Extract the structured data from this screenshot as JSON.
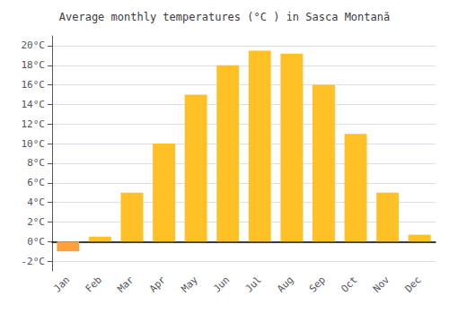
{
  "chart_data": {
    "type": "bar",
    "title": "Average monthly temperatures (°C ) in Sasca Montană",
    "categories": [
      "Jan",
      "Feb",
      "Mar",
      "Apr",
      "May",
      "Jun",
      "Jul",
      "Aug",
      "Sep",
      "Oct",
      "Nov",
      "Dec"
    ],
    "values": [
      -1.0,
      0.5,
      5.0,
      10.0,
      15.0,
      18.0,
      19.5,
      19.2,
      16.0,
      11.0,
      5.0,
      0.7
    ],
    "colors": [
      "#FFA040",
      "#FFC125",
      "#FFC125",
      "#FFC125",
      "#FFC125",
      "#FFC125",
      "#FFC125",
      "#FFC125",
      "#FFC125",
      "#FFC125",
      "#FFC125",
      "#FFC125"
    ],
    "ylim": [
      -3,
      21
    ],
    "yticks": [
      {
        "value": -2,
        "label": "-2°C"
      },
      {
        "value": 0,
        "label": "0°C"
      },
      {
        "value": 2,
        "label": "2°C"
      },
      {
        "value": 4,
        "label": "4°C"
      },
      {
        "value": 6,
        "label": "6°C"
      },
      {
        "value": 8,
        "label": "8°C"
      },
      {
        "value": 10,
        "label": "10°C"
      },
      {
        "value": 12,
        "label": "12°C"
      },
      {
        "value": 14,
        "label": "14°C"
      },
      {
        "value": 16,
        "label": "16°C"
      },
      {
        "value": 18,
        "label": "18°C"
      },
      {
        "value": 20,
        "label": "20°C"
      }
    ],
    "grid": true
  }
}
